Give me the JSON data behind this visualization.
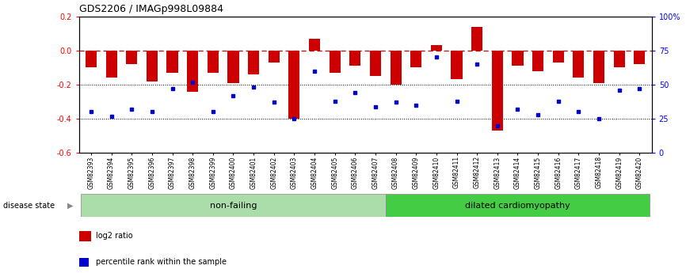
{
  "title": "GDS2206 / IMAGp998L09884",
  "samples": [
    "GSM82393",
    "GSM82394",
    "GSM82395",
    "GSM82396",
    "GSM82397",
    "GSM82398",
    "GSM82399",
    "GSM82400",
    "GSM82401",
    "GSM82402",
    "GSM82403",
    "GSM82404",
    "GSM82405",
    "GSM82406",
    "GSM82407",
    "GSM82408",
    "GSM82409",
    "GSM82410",
    "GSM82411",
    "GSM82412",
    "GSM82413",
    "GSM82414",
    "GSM82415",
    "GSM82416",
    "GSM82417",
    "GSM82418",
    "GSM82419",
    "GSM82420"
  ],
  "log2_ratio": [
    -0.1,
    -0.16,
    -0.08,
    -0.18,
    -0.13,
    -0.24,
    -0.13,
    -0.19,
    -0.14,
    -0.07,
    -0.4,
    0.07,
    -0.13,
    -0.09,
    -0.15,
    -0.2,
    -0.1,
    0.03,
    -0.17,
    0.14,
    -0.47,
    -0.09,
    -0.12,
    -0.07,
    -0.16,
    -0.19,
    -0.1,
    -0.08
  ],
  "percentile": [
    30,
    27,
    32,
    30,
    47,
    52,
    30,
    42,
    48,
    37,
    25,
    60,
    38,
    44,
    34,
    37,
    35,
    70,
    38,
    65,
    20,
    32,
    28,
    38,
    30,
    25,
    46,
    47
  ],
  "non_failing_count": 15,
  "bar_color": "#cc0000",
  "dot_color": "#0000cc",
  "dashed_line_color": "#cc0000",
  "non_failing_color": "#aaddaa",
  "dilated_color": "#44cc44",
  "ylim": [
    -0.6,
    0.2
  ],
  "y_right_ticks": [
    0,
    25,
    50,
    75,
    100
  ],
  "y_right_labels": [
    "0",
    "25",
    "50",
    "75",
    "100%"
  ],
  "y_left_ticks": [
    -0.6,
    -0.4,
    -0.2,
    0.0,
    0.2
  ],
  "dotted_lines": [
    -0.2,
    -0.4
  ],
  "background_color": "#ffffff"
}
